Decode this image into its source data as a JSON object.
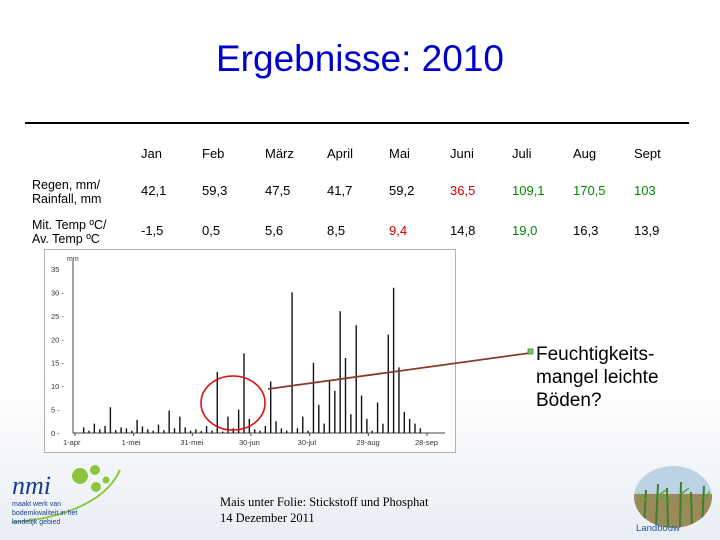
{
  "slide": {
    "title": "Ergebnisse: 2010",
    "callout": [
      "Feuchtigkeits-",
      "mangel leichte",
      "Böden?"
    ],
    "footer_note": [
      "Mais unter Folie: Stickstoff und Phosphat",
      "14 Dezember 2011"
    ]
  },
  "logo": {
    "text": "nmi",
    "tagline": [
      "maakt werk van",
      "bodemkwaliteit in het",
      "landelijk gebied"
    ]
  },
  "landbouw_label": "Landbouw",
  "table": {
    "columns": [
      "Jan",
      "Feb",
      "März",
      "April",
      "Mai",
      "Juni",
      "Juli",
      "Aug",
      "Sept"
    ],
    "rows": [
      {
        "label": [
          "Regen, mm/",
          "Rainfall, mm"
        ],
        "values": [
          "42,1",
          "59,3",
          "47,5",
          "41,7",
          "59,2",
          "36,5",
          "109,1",
          "170,5",
          "103"
        ],
        "colors": [
          "#000000",
          "#000000",
          "#000000",
          "#000000",
          "#000000",
          "#cc0000",
          "#008800",
          "#008800",
          "#008800"
        ]
      },
      {
        "label": [
          "Mit. Temp ºC/",
          "Av. Temp ºC"
        ],
        "values": [
          "-1,5",
          "0,5",
          "5,6",
          "8,5",
          "9,4",
          "14,8",
          "19,0",
          "16,3",
          "13,9"
        ],
        "colors": [
          "#000000",
          "#000000",
          "#000000",
          "#000000",
          "#cc0000",
          "#000000",
          "#008800",
          "#000000",
          "#000000"
        ]
      }
    ]
  },
  "chart_data": {
    "type": "bar",
    "ylabel": "mm",
    "ylim": [
      0,
      35
    ],
    "yticks": [
      "35",
      "30 -",
      "25 -",
      "20 -",
      "15 -",
      "10 -",
      "5 -",
      "0 -"
    ],
    "xticks": [
      "1-apr",
      "1-mei",
      "31-mei",
      "30-jun",
      "30-jul",
      "29-aug",
      "28-sep"
    ],
    "series": [
      {
        "values": [
          1.2,
          0.5,
          2.0,
          0.8,
          1.5,
          5.5,
          0.6,
          1.2,
          1.0,
          0.5,
          2.8,
          1.4,
          0.8,
          0.5,
          1.8,
          0.6,
          4.8,
          1.0,
          3.5,
          1.2,
          0.5,
          0.8,
          0.4,
          1.5,
          0.5,
          13.0,
          0.3,
          3.5,
          1.0,
          5.0,
          17.0,
          3.0,
          0.8,
          0.5,
          1.5,
          11.0,
          2.5,
          1.0,
          0.5,
          30.0,
          1.0,
          3.5,
          0.5,
          15.0,
          6.0,
          2.0,
          11.0,
          9.0,
          26.0,
          16.0,
          4.0,
          23.0,
          8.0,
          3.0,
          0.5,
          6.5,
          2.0,
          21.0,
          31.0,
          14.0,
          4.5,
          3.0,
          2.0,
          1.0
        ]
      }
    ]
  }
}
